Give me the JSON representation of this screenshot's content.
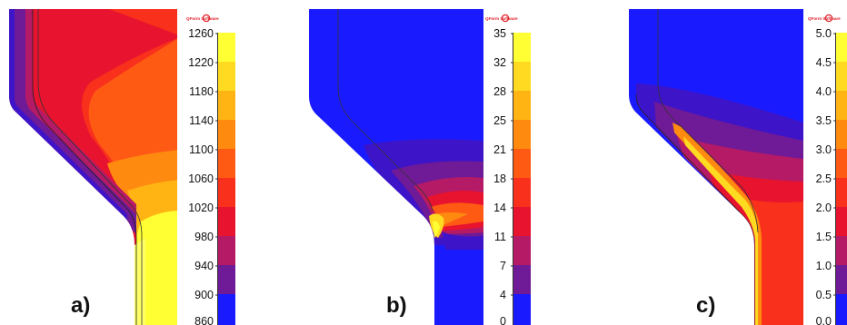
{
  "panels": [
    {
      "label": "a)",
      "logo_text": "QForm Software",
      "scale": {
        "ticks": [
          "1260",
          "1220",
          "1180",
          "1140",
          "1100",
          "1060",
          "1020",
          "980",
          "940",
          "900",
          "860"
        ],
        "colors": [
          "#1a1aff",
          "#3d14c8",
          "#6f1a96",
          "#b41a66",
          "#e8132e",
          "#f8301c",
          "#ff5a14",
          "#ff8a10",
          "#ffb414",
          "#ffda20",
          "#ffff33"
        ]
      }
    },
    {
      "label": "b)",
      "logo_text": "QForm Software",
      "scale": {
        "ticks": [
          "35",
          "32",
          "28",
          "25",
          "21",
          "18",
          "14",
          "11",
          "7",
          "4",
          "0"
        ],
        "colors": [
          "#1a1aff",
          "#3d14c8",
          "#6f1a96",
          "#b41a66",
          "#e8132e",
          "#f8301c",
          "#ff5a14",
          "#ff8a10",
          "#ffb414",
          "#ffda20",
          "#ffff33"
        ]
      }
    },
    {
      "label": "c)",
      "logo_text": "QForm Software",
      "scale": {
        "ticks": [
          "5.0",
          "4.5",
          "4.0",
          "3.5",
          "3.0",
          "2.5",
          "2.0",
          "1.5",
          "1.0",
          "0.5",
          "0.0"
        ],
        "colors": [
          "#1a1aff",
          "#3d14c8",
          "#6f1a96",
          "#b41a66",
          "#e8132e",
          "#f8301c",
          "#ff5a14",
          "#ff8a10",
          "#ffb414",
          "#ffda20",
          "#ffff33"
        ]
      }
    }
  ]
}
